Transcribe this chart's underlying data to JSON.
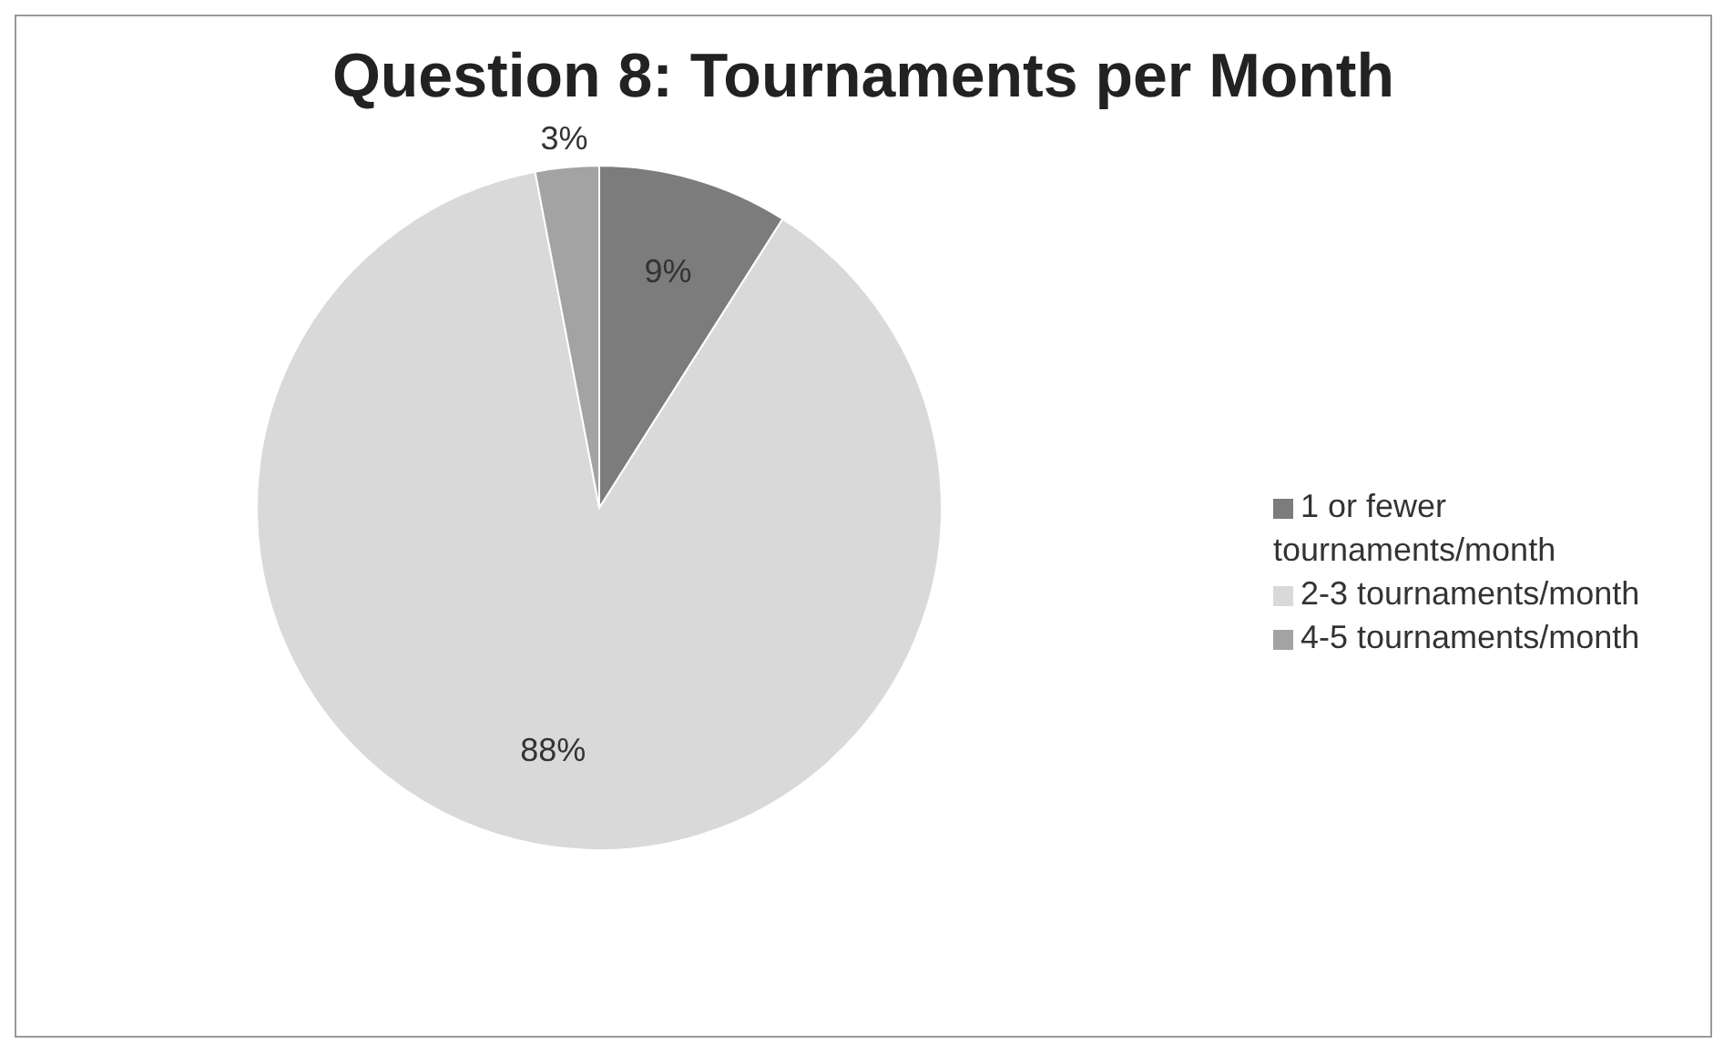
{
  "chart_data": {
    "type": "pie",
    "title": "Question 8: Tournaments per Month",
    "categories": [
      "1 or fewer tournaments/month",
      "2-3 tournaments/month",
      "4-5 tournaments/month"
    ],
    "values": [
      9,
      88,
      3
    ],
    "colors": [
      "#7c7c7c",
      "#d9d9d9",
      "#a3a3a3"
    ],
    "value_labels": [
      "9%",
      "88%",
      "3%"
    ],
    "legend": "right"
  }
}
